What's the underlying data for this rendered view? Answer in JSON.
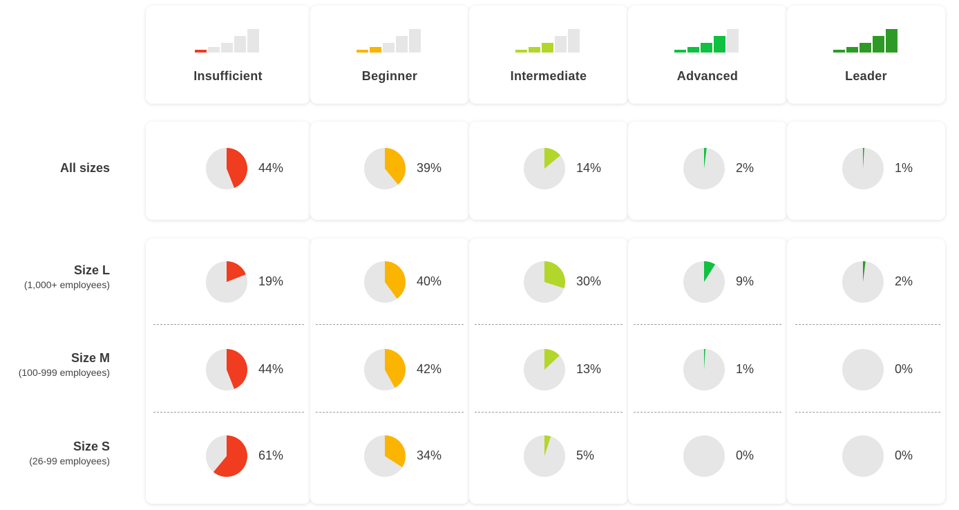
{
  "chart_data": {
    "type": "pie-matrix",
    "title": "",
    "levels": [
      {
        "name": "Insufficient",
        "color": "#f03c1f",
        "bars_active": 1
      },
      {
        "name": "Beginner",
        "color": "#fbb400",
        "bars_active": 2
      },
      {
        "name": "Intermediate",
        "color": "#b3d62b",
        "bars_active": 3
      },
      {
        "name": "Advanced",
        "color": "#10c040",
        "bars_active": 4
      },
      {
        "name": "Leader",
        "color": "#2e9a26",
        "bars_active": 5
      }
    ],
    "inactive_color": "#e6e6e6",
    "pie_background": "#e6e6e6",
    "rows": [
      {
        "title": "All sizes",
        "subtitle": "",
        "values": [
          44,
          39,
          14,
          2,
          1
        ]
      },
      {
        "title": "Size L",
        "subtitle": "(1,000+ employees)",
        "values": [
          19,
          40,
          30,
          9,
          2
        ]
      },
      {
        "title": "Size M",
        "subtitle": "(100-999 employees)",
        "values": [
          44,
          42,
          13,
          1,
          0
        ]
      },
      {
        "title": "Size S",
        "subtitle": "(26-99 employees)",
        "values": [
          61,
          34,
          5,
          0,
          0
        ]
      }
    ],
    "value_suffix": "%"
  }
}
